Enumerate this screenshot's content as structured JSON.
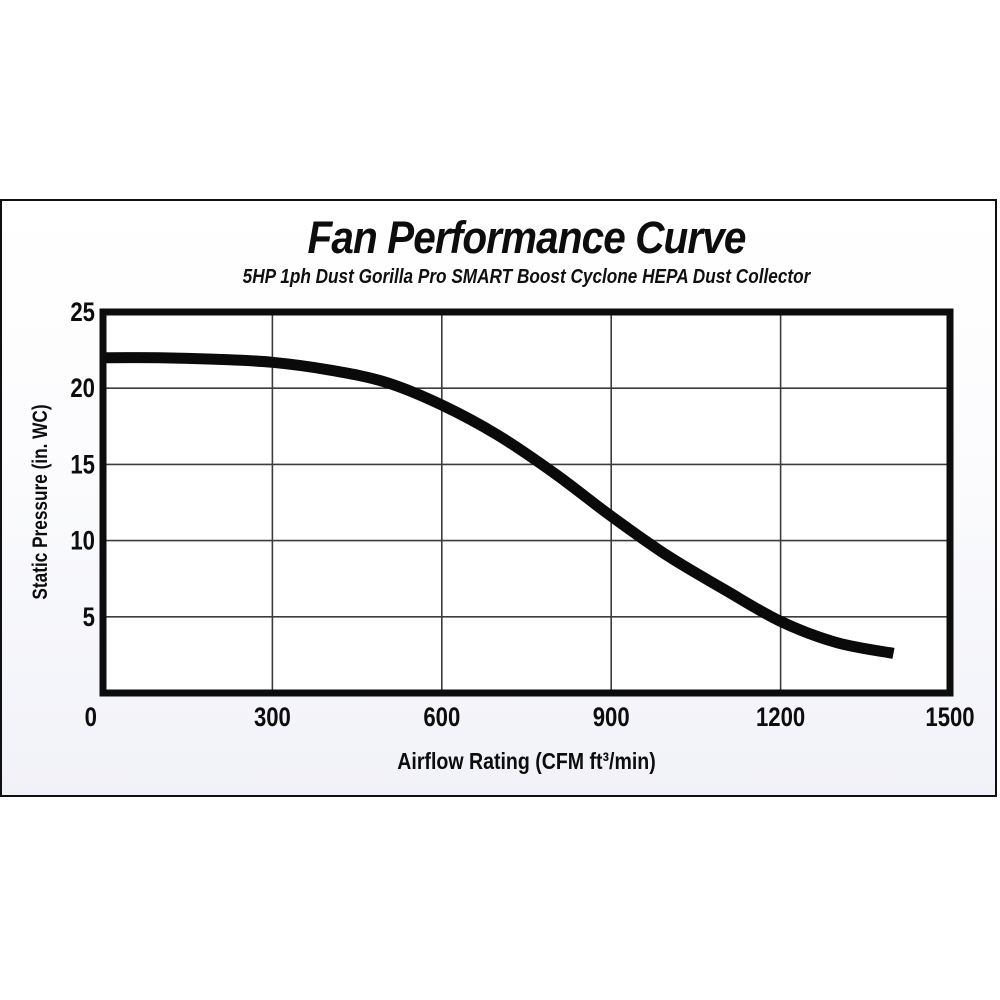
{
  "page": {
    "background": "#ffffff"
  },
  "panel": {
    "border_color": "#101010",
    "background_top": "#ffffff",
    "background_bottom": "#f1f2f8"
  },
  "chart_data": {
    "type": "line",
    "title": "Fan Performance Curve",
    "subtitle": "5HP 1ph Dust Gorilla Pro SMART Boost Cyclone HEPA Dust Collector",
    "xlabel": "Airflow Rating (CFM ft³/min)",
    "ylabel": "Static Pressure (in. WC)",
    "xlim": [
      0,
      1500
    ],
    "ylim": [
      0,
      25
    ],
    "x_ticks": [
      0,
      300,
      600,
      900,
      1200,
      1500
    ],
    "y_ticks": [
      5,
      10,
      15,
      20,
      25
    ],
    "grid": true,
    "legend": "none",
    "line_color": "#0a0a0a",
    "line_width": 11,
    "grid_color": "#3c3c3c",
    "plot_border_color": "#0d0d0d",
    "plot_background": "#ffffff",
    "tick_color": "#0d0d0d",
    "series": [
      {
        "name": "fan-performance-curve",
        "x": [
          0,
          100,
          200,
          300,
          400,
          500,
          600,
          700,
          800,
          900,
          1000,
          1100,
          1200,
          1300,
          1400
        ],
        "y": [
          22.0,
          22.0,
          21.9,
          21.7,
          21.2,
          20.4,
          18.9,
          16.9,
          14.4,
          11.6,
          9.0,
          6.8,
          4.7,
          3.3,
          2.6
        ]
      }
    ]
  }
}
